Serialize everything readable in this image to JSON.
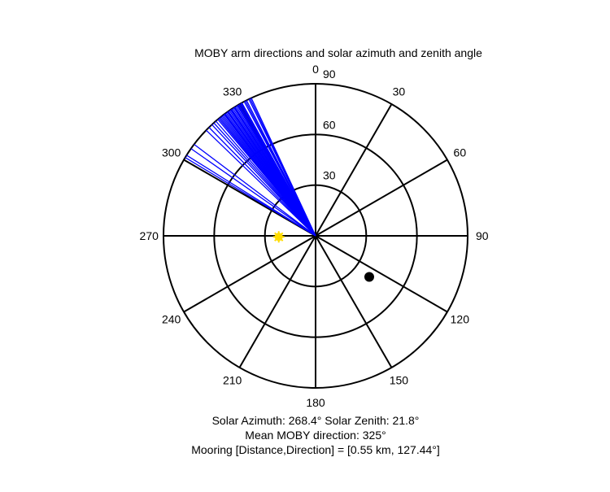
{
  "chart_data": {
    "type": "polar",
    "title": "MOBY arm directions and solar azimuth and zenith angle",
    "axis": {
      "theta_ticks": [
        {
          "value": 0,
          "label": "0"
        },
        {
          "value": 30,
          "label": "30"
        },
        {
          "value": 60,
          "label": "60"
        },
        {
          "value": 90,
          "label": "90"
        },
        {
          "value": 120,
          "label": "120"
        },
        {
          "value": 150,
          "label": "150"
        },
        {
          "value": 180,
          "label": "180"
        },
        {
          "value": 210,
          "label": "210"
        },
        {
          "value": 240,
          "label": "240"
        },
        {
          "value": 270,
          "label": "270"
        },
        {
          "value": 300,
          "label": "300"
        },
        {
          "value": 330,
          "label": "330"
        }
      ],
      "r_ticks": [
        {
          "value": 30,
          "label": "30"
        },
        {
          "value": 60,
          "label": "60"
        },
        {
          "value": 90,
          "label": "90"
        }
      ],
      "r_max": 90,
      "theta_zero": "top",
      "theta_direction": "clockwise"
    },
    "series": [
      {
        "type": "rays",
        "color": "#0000ff",
        "r": 90,
        "angles": [
          314.0,
          315.5,
          317.0,
          318.0,
          319.0,
          320.0,
          321.0,
          322.0,
          322.5,
          323.0,
          323.5,
          324.0,
          324.5,
          325.0,
          325.5,
          326.0,
          326.5,
          327.0,
          327.5,
          328.0,
          328.5,
          329.0,
          329.5,
          330.0,
          330.5,
          331.0,
          332.0,
          333.0,
          334.0,
          335.0,
          320.5,
          321.5,
          323.2,
          324.8,
          326.3,
          327.8,
          329.2,
          330.8,
          332.5,
          334.5
        ]
      },
      {
        "type": "ray_group",
        "color": "#0000ff",
        "r": 90,
        "angles": [
          301.0,
          302.0,
          305.0,
          307.0
        ]
      },
      {
        "type": "point",
        "name": "Sun",
        "marker": "star",
        "color": "#ffdd00",
        "theta": 268.4,
        "r": 21.8
      },
      {
        "type": "point",
        "name": "Mooring",
        "marker": "circle",
        "color": "#000000",
        "theta": 127.44,
        "r": 40
      }
    ],
    "annotations": [
      "Solar Azimuth: 268.4°   Solar Zenith: 21.8°",
      "Mean MOBY direction: 325°",
      "Mooring [Distance,Direction] = [0.55 km, 127.44°]"
    ]
  }
}
